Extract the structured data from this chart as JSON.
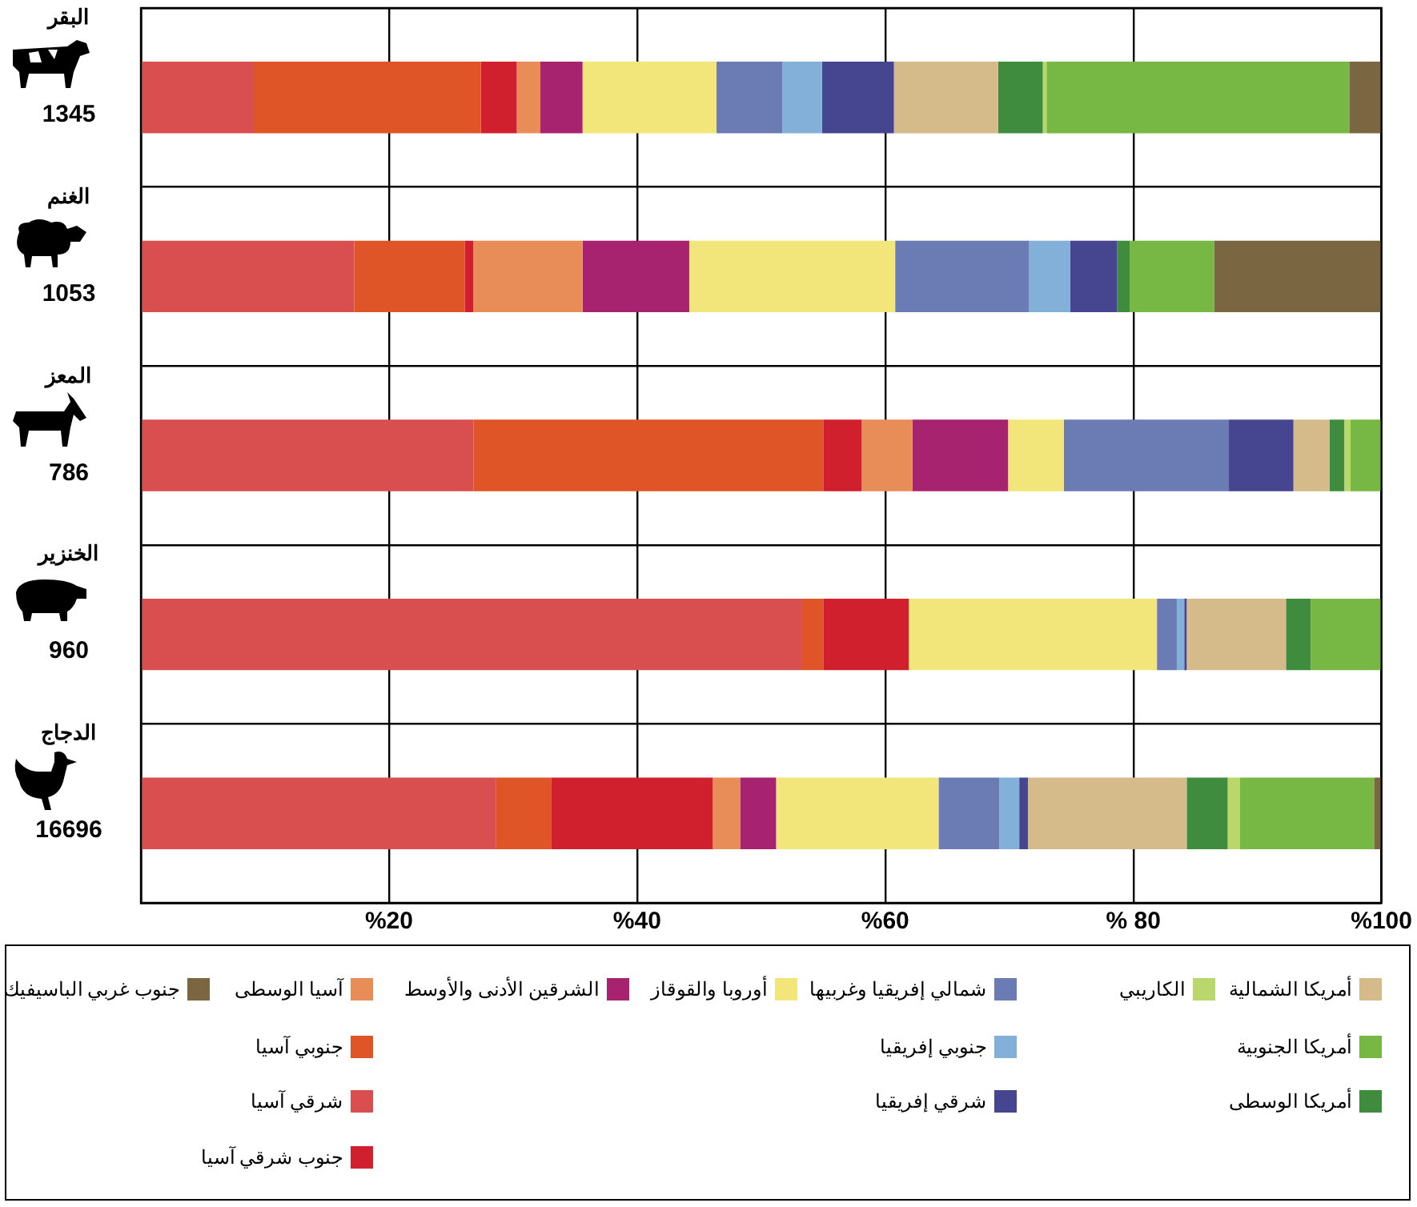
{
  "chart_data": {
    "type": "bar",
    "orientation": "horizontal",
    "stacked": true,
    "grid": true,
    "legend": "bottom",
    "categories": [
      "البقر",
      "الغنم",
      "المعز",
      "الخنزير",
      "الدجاج"
    ],
    "annotations": [
      "1345",
      "1053",
      "786",
      "960",
      "16696"
    ],
    "xlim": [
      0,
      100
    ],
    "xticks": [
      {
        "value": 0,
        "label": null
      },
      {
        "value": 20,
        "label": "%20"
      },
      {
        "value": 40,
        "label": "%40"
      },
      {
        "value": 60,
        "label": "%60"
      },
      {
        "value": 80,
        "label": "% 80"
      },
      {
        "value": 100,
        "label": "%100"
      }
    ],
    "series": [
      {
        "name": "شرقي آسيا",
        "color": "#d94f4f",
        "values": [
          9.1,
          17.2,
          26.8,
          53.3,
          28.6
        ]
      },
      {
        "name": "جنوبي آسيا",
        "color": "#e05527",
        "values": [
          18.3,
          8.9,
          28.2,
          1.7,
          4.5
        ]
      },
      {
        "name": "جنوب شرقي آسيا",
        "color": "#d0202d",
        "values": [
          2.9,
          0.7,
          3.1,
          6.9,
          13.0
        ]
      },
      {
        "name": "آسيا الوسطى",
        "color": "#e88c58",
        "values": [
          1.9,
          8.8,
          4.1,
          0,
          2.2
        ]
      },
      {
        "name": "الشرقين الأدنى والأوسط",
        "color": "#a8236f",
        "values": [
          3.4,
          8.6,
          7.7,
          0,
          2.9
        ]
      },
      {
        "name": "أوروبا والقوقاز",
        "color": "#f2e67a",
        "values": [
          10.8,
          16.6,
          4.5,
          20.0,
          13.1
        ]
      },
      {
        "name": "شمالي إفريقيا وغربيها",
        "color": "#6b7bb4",
        "values": [
          5.3,
          10.8,
          13.3,
          1.6,
          4.9
        ]
      },
      {
        "name": "جنوبي إفريقيا",
        "color": "#82b0d8",
        "values": [
          3.2,
          3.3,
          0,
          0.6,
          1.6
        ]
      },
      {
        "name": "شرقي إفريقيا",
        "color": "#464590",
        "values": [
          5.8,
          3.8,
          5.2,
          0.2,
          0.7
        ]
      },
      {
        "name": "أمريكا الشمالية",
        "color": "#d5ba8a",
        "values": [
          8.4,
          0,
          2.9,
          8.0,
          12.8
        ]
      },
      {
        "name": "أمريكا الوسطى",
        "color": "#3f8c3f",
        "values": [
          3.6,
          1.0,
          1.2,
          2.0,
          3.3
        ]
      },
      {
        "name": "الكاريبي",
        "color": "#b9d76a",
        "values": [
          0.3,
          0,
          0.5,
          0,
          1.0
        ]
      },
      {
        "name": "أمريكا الجنوبية",
        "color": "#77b845",
        "values": [
          24.4,
          6.8,
          2.5,
          5.7,
          10.8
        ]
      },
      {
        "name": "جنوب غربي الباسيفيك",
        "color": "#7a6640",
        "values": [
          2.6,
          13.5,
          0,
          0,
          0.6
        ]
      }
    ]
  }
}
